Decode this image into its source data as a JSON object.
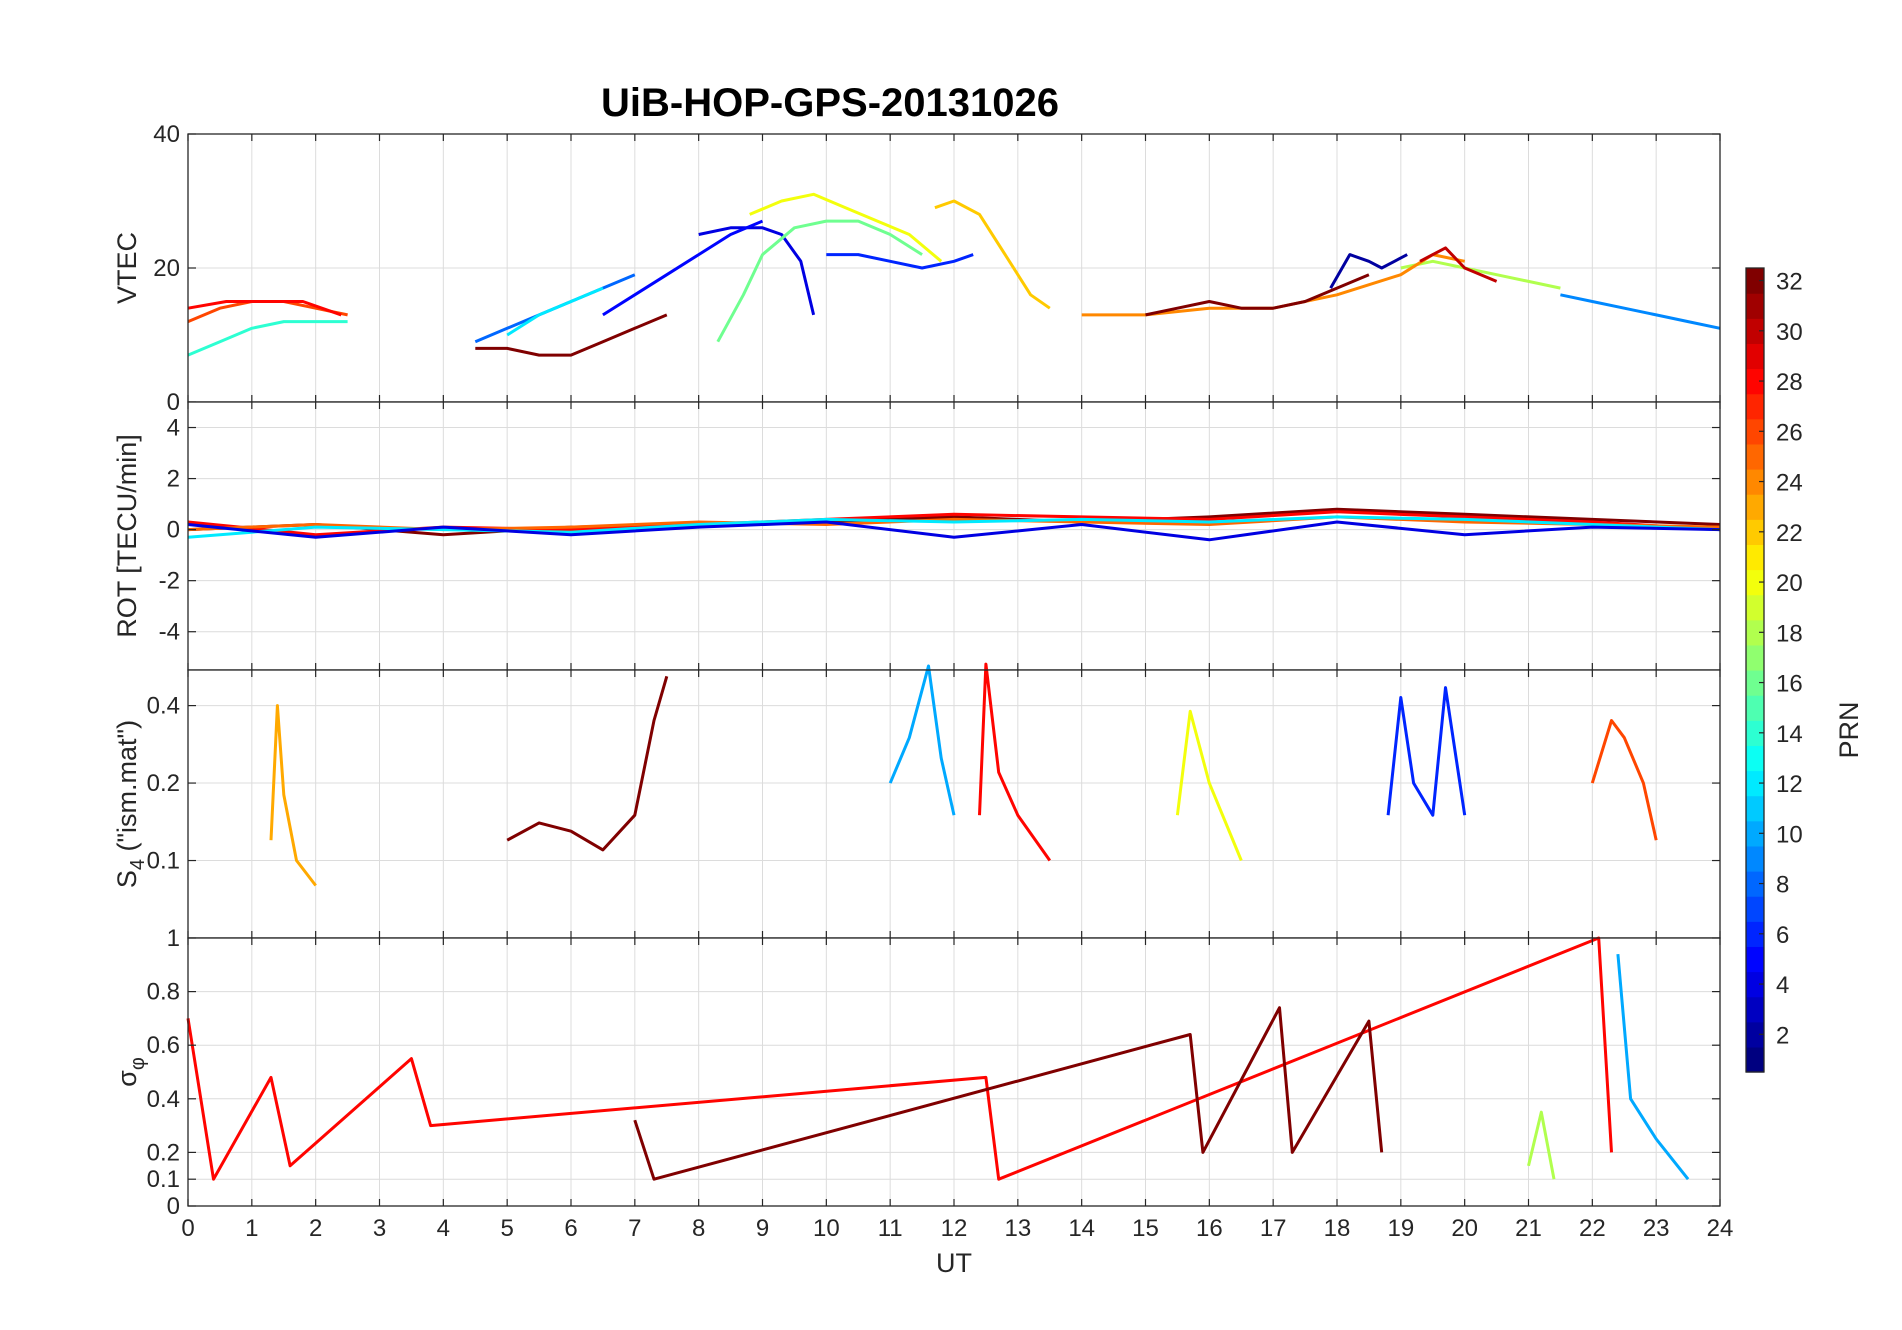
{
  "chart_data": {
    "type": "line",
    "title": "UiB-HOP-GPS-20131026",
    "xlabel": "UT",
    "xlim": [
      0,
      24
    ],
    "x_ticks": [
      "0",
      "1",
      "2",
      "3",
      "4",
      "5",
      "6",
      "7",
      "8",
      "9",
      "10",
      "11",
      "12",
      "13",
      "14",
      "15",
      "16",
      "17",
      "18",
      "19",
      "20",
      "21",
      "22",
      "23",
      "24"
    ],
    "grid": true,
    "colorbar": {
      "label": "PRN",
      "colormap": "jet",
      "range": [
        1,
        32
      ],
      "ticks": [
        "2",
        "4",
        "6",
        "8",
        "10",
        "12",
        "14",
        "16",
        "18",
        "20",
        "22",
        "24",
        "26",
        "28",
        "30",
        "32"
      ]
    },
    "panels": [
      {
        "id": "vtec",
        "ylabel": "VTEC",
        "ylim": [
          0,
          40
        ],
        "y_ticks": [
          "0",
          "20",
          "40"
        ],
        "series": [
          {
            "prn": 2,
            "x": [
              17.9,
              18.2,
              18.5,
              18.7,
              18.9,
              19.1
            ],
            "y": [
              17,
              22,
              21,
              20,
              21,
              22
            ]
          },
          {
            "prn": 4,
            "x": [
              8.0,
              8.5,
              9.0,
              9.3,
              9.6,
              9.8
            ],
            "y": [
              25,
              26,
              26,
              25,
              21,
              13
            ]
          },
          {
            "prn": 5,
            "x": [
              6.5,
              7.0,
              7.5,
              8.0,
              8.5,
              9.0
            ],
            "y": [
              13,
              16,
              19,
              22,
              25,
              27
            ]
          },
          {
            "prn": 6,
            "x": [
              10.0,
              10.5,
              11.0,
              11.5,
              12.0,
              12.3
            ],
            "y": [
              22,
              22,
              21,
              20,
              21,
              22
            ]
          },
          {
            "prn": 8,
            "x": [
              4.5,
              5.0,
              5.5,
              6.0,
              6.5,
              7.0
            ],
            "y": [
              9,
              11,
              13,
              15,
              17,
              19
            ]
          },
          {
            "prn": 9,
            "x": [
              21.5,
              22.0,
              22.5,
              23.0,
              23.5,
              24.0
            ],
            "y": [
              16,
              15,
              14,
              13,
              12,
              11
            ]
          },
          {
            "prn": 12,
            "x": [
              5.0,
              5.5,
              6.0,
              6.5
            ],
            "y": [
              10,
              13,
              15,
              17
            ]
          },
          {
            "prn": 14,
            "x": [
              0.0,
              0.5,
              1.0,
              1.5,
              2.0,
              2.5
            ],
            "y": [
              7,
              9,
              11,
              12,
              12,
              12
            ]
          },
          {
            "prn": 16,
            "x": [
              8.3,
              8.7,
              9.0,
              9.5,
              10.0,
              10.5,
              11.0,
              11.5
            ],
            "y": [
              9,
              16,
              22,
              26,
              27,
              27,
              25,
              22
            ]
          },
          {
            "prn": 18,
            "x": [
              19.0,
              19.5,
              20.0,
              20.5,
              21.0,
              21.5
            ],
            "y": [
              20,
              21,
              20,
              19,
              18,
              17
            ]
          },
          {
            "prn": 20,
            "x": [
              8.8,
              9.3,
              9.8,
              10.3,
              10.8,
              11.3,
              11.8
            ],
            "y": [
              28,
              30,
              31,
              29,
              27,
              25,
              21
            ]
          },
          {
            "prn": 22,
            "x": [
              11.7,
              12.0,
              12.4,
              12.8,
              13.2,
              13.5
            ],
            "y": [
              29,
              30,
              28,
              22,
              16,
              14
            ]
          },
          {
            "prn": 24,
            "x": [
              14.0,
              15.0,
              16.0,
              17.0,
              18.0,
              19.0,
              19.5,
              20.0
            ],
            "y": [
              13,
              13,
              14,
              14,
              16,
              19,
              22,
              21
            ]
          },
          {
            "prn": 26,
            "x": [
              0.0,
              0.5,
              1.0,
              1.5,
              2.0,
              2.5
            ],
            "y": [
              12,
              14,
              15,
              15,
              14,
              13
            ]
          },
          {
            "prn": 28,
            "x": [
              0.0,
              0.6,
              1.2,
              1.8,
              2.4
            ],
            "y": [
              14,
              15,
              15,
              15,
              13
            ]
          },
          {
            "prn": 30,
            "x": [
              19.3,
              19.7,
              20.0,
              20.5
            ],
            "y": [
              21,
              23,
              20,
              18
            ]
          },
          {
            "prn": 32,
            "x": [
              4.5,
              5.0,
              5.5,
              6.0,
              6.5,
              7.0,
              7.5
            ],
            "y": [
              8,
              8,
              7,
              7,
              9,
              11,
              13
            ]
          },
          {
            "prn": 32,
            "x": [
              15.0,
              15.5,
              16.0,
              16.5,
              17.0,
              17.5,
              18.0,
              18.5
            ],
            "y": [
              13,
              14,
              15,
              14,
              14,
              15,
              17,
              19
            ]
          }
        ]
      },
      {
        "id": "rot",
        "ylabel": "ROT [TECU/min]",
        "ylim": [
          -5.5,
          5
        ],
        "y_ticks": [
          "-4",
          "-2",
          "0",
          "2",
          "4"
        ],
        "series": [
          {
            "prn": 32,
            "x": [
              0,
              2,
              4,
              6,
              8,
              10,
              12,
              14,
              16,
              18,
              20,
              22,
              24
            ],
            "y": [
              0,
              0.2,
              -0.2,
              0.1,
              0.2,
              0.3,
              0.5,
              0.3,
              0.5,
              0.8,
              0.6,
              0.4,
              0.2
            ]
          },
          {
            "prn": 28,
            "x": [
              0,
              2,
              4,
              6,
              8,
              10,
              12,
              14,
              16,
              18,
              20,
              22,
              24
            ],
            "y": [
              0.3,
              -0.2,
              0.1,
              0,
              0.2,
              0.4,
              0.6,
              0.5,
              0.4,
              0.7,
              0.5,
              0.3,
              0
            ]
          },
          {
            "prn": 25,
            "x": [
              0,
              2,
              4,
              6,
              8,
              10,
              12,
              14,
              16,
              18,
              20,
              22,
              24
            ],
            "y": [
              0,
              0.2,
              0,
              0.1,
              0.3,
              0.2,
              0.4,
              0.3,
              0.2,
              0.5,
              0.3,
              0.2,
              0.1
            ]
          },
          {
            "prn": 12,
            "x": [
              0,
              2,
              4,
              6,
              8,
              10,
              12,
              14,
              16,
              18,
              20,
              22,
              24
            ],
            "y": [
              -0.3,
              0.1,
              0,
              -0.1,
              0.2,
              0.4,
              0.3,
              0.4,
              0.3,
              0.5,
              0.4,
              0.2,
              0
            ]
          },
          {
            "prn": 4,
            "x": [
              0,
              2,
              4,
              6,
              8,
              10,
              12,
              14,
              16,
              18,
              20,
              22,
              24
            ],
            "y": [
              0.2,
              -0.3,
              0.1,
              -0.2,
              0.1,
              0.3,
              -0.3,
              0.2,
              -0.4,
              0.3,
              -0.2,
              0.1,
              0
            ]
          }
        ]
      },
      {
        "id": "s4",
        "ylabel": "S4 (\"ism.mat\")",
        "ylabel_main": "S",
        "ylabel_sub": "4",
        "ylabel_rest": " (\"ism.mat\")",
        "ylim": [
          0.05,
          0.55
        ],
        "scale": "log",
        "y_ticks": [
          "0.1",
          "0.2",
          "0.4"
        ],
        "series": [
          {
            "prn": 32,
            "x": [
              5.0,
              5.5,
              6.0,
              6.5,
              7.0,
              7.3,
              7.5
            ],
            "y": [
              0.12,
              0.14,
              0.13,
              0.11,
              0.15,
              0.35,
              0.52
            ]
          },
          {
            "prn": 28,
            "x": [
              12.4,
              12.5,
              12.7,
              13.0,
              13.5
            ],
            "y": [
              0.15,
              0.58,
              0.22,
              0.15,
              0.1
            ]
          },
          {
            "prn": 10,
            "x": [
              11.0,
              11.3,
              11.6,
              11.8,
              12.0
            ],
            "y": [
              0.2,
              0.3,
              0.57,
              0.25,
              0.15
            ]
          },
          {
            "prn": 23,
            "x": [
              1.3,
              1.4,
              1.5,
              1.7,
              2.0
            ],
            "y": [
              0.12,
              0.4,
              0.18,
              0.1,
              0.08
            ]
          },
          {
            "prn": 6,
            "x": [
              18.8,
              19.0,
              19.2,
              19.5,
              19.7,
              20.0
            ],
            "y": [
              0.15,
              0.43,
              0.2,
              0.15,
              0.47,
              0.15
            ]
          },
          {
            "prn": 26,
            "x": [
              22.0,
              22.3,
              22.5,
              22.8,
              23.0
            ],
            "y": [
              0.2,
              0.35,
              0.3,
              0.2,
              0.12
            ]
          },
          {
            "prn": 20,
            "x": [
              15.5,
              15.7,
              16.0,
              16.5
            ],
            "y": [
              0.15,
              0.38,
              0.2,
              0.1
            ]
          }
        ]
      },
      {
        "id": "sigma",
        "ylabel": "σφ",
        "ylabel_main": "σ",
        "ylabel_sub": "φ",
        "ylim": [
          0,
          1
        ],
        "y_ticks": [
          "0",
          "0.1",
          "0.2",
          "0.4",
          "0.6",
          "0.8",
          "1"
        ],
        "series": [
          {
            "prn": 28,
            "x": [
              0.0,
              0.2,
              0.4,
              1.3,
              1.6,
              3.5,
              3.8,
              12.5,
              12.7,
              22.1,
              22.3
            ],
            "y": [
              0.7,
              0.4,
              0.1,
              0.48,
              0.15,
              0.55,
              0.3,
              0.48,
              0.1,
              1.0,
              0.2
            ]
          },
          {
            "prn": 32,
            "x": [
              7.0,
              7.3,
              15.7,
              15.9,
              17.1,
              17.3,
              18.5,
              18.7
            ],
            "y": [
              0.32,
              0.1,
              0.64,
              0.2,
              0.74,
              0.2,
              0.69,
              0.2
            ]
          },
          {
            "prn": 10,
            "x": [
              22.4,
              22.6,
              23.0,
              23.5
            ],
            "y": [
              0.94,
              0.4,
              0.25,
              0.1
            ]
          },
          {
            "prn": 18,
            "x": [
              21.0,
              21.2,
              21.4
            ],
            "y": [
              0.15,
              0.35,
              0.1
            ]
          }
        ]
      }
    ]
  }
}
